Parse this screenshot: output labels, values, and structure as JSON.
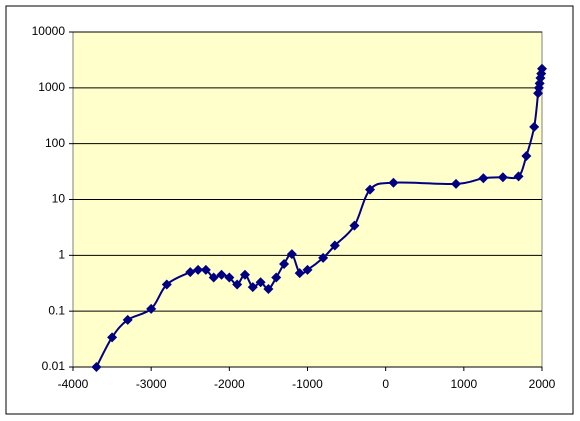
{
  "chart_data": {
    "type": "line",
    "x": [
      -3700,
      -3500,
      -3300,
      -3000,
      -2800,
      -2500,
      -2400,
      -2300,
      -2200,
      -2100,
      -2000,
      -1900,
      -1800,
      -1700,
      -1600,
      -1500,
      -1400,
      -1300,
      -1200,
      -1100,
      -1000,
      -800,
      -650,
      -400,
      -200,
      100,
      900,
      1250,
      1500,
      1700,
      1800,
      1900,
      1950,
      1960,
      1970,
      1980,
      1990,
      2000
    ],
    "values": [
      0.01,
      0.034,
      0.07,
      0.11,
      0.3,
      0.5,
      0.55,
      0.55,
      0.4,
      0.45,
      0.4,
      0.3,
      0.45,
      0.27,
      0.33,
      0.25,
      0.4,
      0.7,
      1.05,
      0.48,
      0.55,
      0.9,
      1.5,
      3.4,
      15,
      20,
      19,
      24,
      25,
      26,
      60,
      200,
      800,
      1000,
      1200,
      1500,
      1800,
      2200
    ],
    "color": "#000080",
    "xlim": [
      -4000,
      2000
    ],
    "xticks": [
      -4000,
      -3000,
      -2000,
      -1000,
      0,
      1000,
      2000
    ],
    "ylim": [
      0.01,
      10000
    ],
    "yticks": [
      0.01,
      0.1,
      1,
      10,
      100,
      1000,
      10000
    ],
    "log_y": true,
    "grid": true,
    "smooth": true
  }
}
